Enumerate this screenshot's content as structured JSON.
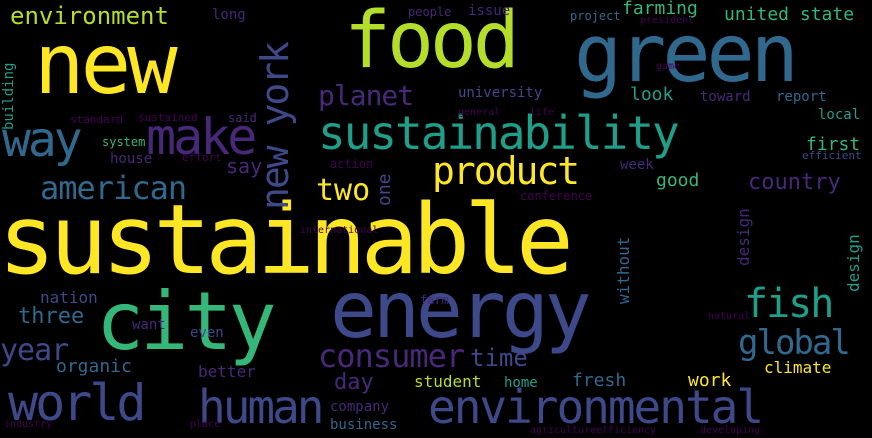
{
  "palette": {
    "yellow": "#fde725",
    "lime": "#b5de2b",
    "green": "#35b779",
    "teal": "#1f9e89",
    "blue": "#31688e",
    "indigo": "#3e4989",
    "purple": "#482878",
    "dark": "#440154"
  },
  "words": [
    {
      "text": "sustainable",
      "color": "yellow"
    },
    {
      "text": "new",
      "color": "yellow"
    },
    {
      "text": "food",
      "color": "lime"
    },
    {
      "text": "green",
      "color": "blue"
    },
    {
      "text": "energy",
      "color": "indigo"
    },
    {
      "text": "city",
      "color": "green"
    },
    {
      "text": "sustainability",
      "color": "teal"
    },
    {
      "text": "world",
      "color": "indigo"
    },
    {
      "text": "human",
      "color": "indigo"
    },
    {
      "text": "environmental",
      "color": "indigo"
    },
    {
      "text": "make",
      "color": "purple"
    },
    {
      "text": "way",
      "color": "blue"
    },
    {
      "text": "product",
      "color": "yellow"
    },
    {
      "text": "consumer",
      "color": "purple"
    },
    {
      "text": "fish",
      "color": "teal"
    },
    {
      "text": "global",
      "color": "blue"
    },
    {
      "text": "american",
      "color": "blue"
    },
    {
      "text": "new york",
      "color": "indigo"
    },
    {
      "text": "planet",
      "color": "purple"
    },
    {
      "text": "environment",
      "color": "lime"
    },
    {
      "text": "farming",
      "color": "green"
    },
    {
      "text": "united state",
      "color": "green"
    },
    {
      "text": "two",
      "color": "yellow"
    },
    {
      "text": "year",
      "color": "indigo"
    },
    {
      "text": "country",
      "color": "purple"
    },
    {
      "text": "time",
      "color": "indigo"
    },
    {
      "text": "day",
      "color": "purple"
    },
    {
      "text": "three",
      "color": "blue"
    },
    {
      "text": "nation",
      "color": "indigo"
    },
    {
      "text": "organic",
      "color": "blue"
    },
    {
      "text": "student",
      "color": "lime"
    },
    {
      "text": "fresh",
      "color": "blue"
    },
    {
      "text": "work",
      "color": "yellow"
    },
    {
      "text": "climate",
      "color": "yellow"
    },
    {
      "text": "home",
      "color": "teal"
    },
    {
      "text": "company",
      "color": "purple"
    },
    {
      "text": "business",
      "color": "blue"
    },
    {
      "text": "good",
      "color": "green"
    },
    {
      "text": "look",
      "color": "teal"
    },
    {
      "text": "toward",
      "color": "purple"
    },
    {
      "text": "report",
      "color": "blue"
    },
    {
      "text": "university",
      "color": "indigo"
    },
    {
      "text": "better",
      "color": "purple"
    },
    {
      "text": "say",
      "color": "purple"
    },
    {
      "text": "first",
      "color": "green"
    },
    {
      "text": "design",
      "color": "purple"
    },
    {
      "text": "long",
      "color": "purple"
    },
    {
      "text": "local",
      "color": "teal"
    },
    {
      "text": "week",
      "color": "purple"
    },
    {
      "text": "without",
      "color": "blue"
    },
    {
      "text": "one",
      "color": "indigo"
    },
    {
      "text": "building",
      "color": "teal"
    },
    {
      "text": "want",
      "color": "purple"
    },
    {
      "text": "even",
      "color": "indigo"
    },
    {
      "text": "issue",
      "color": "purple"
    },
    {
      "text": "project",
      "color": "blue"
    },
    {
      "text": "people",
      "color": "purple"
    },
    {
      "text": "house",
      "color": "purple"
    },
    {
      "text": "system",
      "color": "green"
    },
    {
      "text": "said",
      "color": "purple"
    },
    {
      "text": "sustained",
      "color": "dark"
    },
    {
      "text": "effort",
      "color": "dark"
    },
    {
      "text": "standard",
      "color": "dark"
    },
    {
      "text": "action",
      "color": "dark"
    },
    {
      "text": "conference",
      "color": "dark"
    },
    {
      "text": "farm",
      "color": "purple"
    },
    {
      "text": "efficient",
      "color": "indigo"
    },
    {
      "text": "efficiency",
      "color": "dark"
    },
    {
      "text": "developing",
      "color": "dark"
    },
    {
      "text": "agriculture",
      "color": "dark"
    },
    {
      "text": "industry",
      "color": "dark"
    },
    {
      "text": "international",
      "color": "dark"
    },
    {
      "text": "natural",
      "color": "dark"
    },
    {
      "text": "general",
      "color": "dark"
    },
    {
      "text": "life",
      "color": "dark"
    },
    {
      "text": "game",
      "color": "dark"
    },
    {
      "text": "president",
      "color": "dark"
    },
    {
      "text": "place",
      "color": "dark"
    },
    {
      "text": "design",
      "color": "teal"
    }
  ]
}
